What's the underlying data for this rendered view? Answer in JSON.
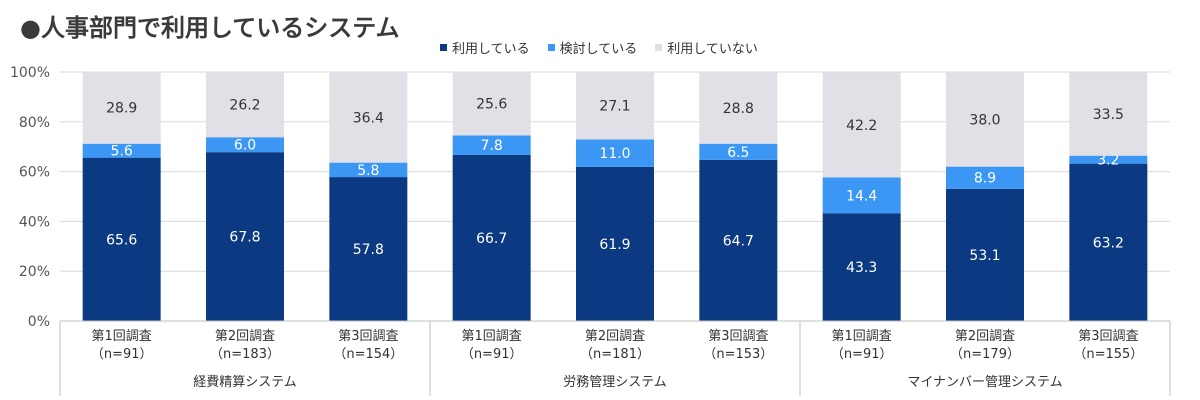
{
  "title": "●人事部門で利用しているシステム",
  "legend": [
    {
      "label": "利用している",
      "color": "#0b3a82"
    },
    {
      "label": "検討している",
      "color": "#3b97f3"
    },
    {
      "label": "利用していない",
      "color": "#e1e0e6"
    }
  ],
  "chart_data": {
    "type": "bar",
    "stacked": true,
    "ylim": [
      0,
      100
    ],
    "yticks": [
      "0%",
      "20%",
      "40%",
      "60%",
      "80%",
      "100%"
    ],
    "grid": true,
    "legend_position": "top",
    "groups": [
      {
        "label": "経費精算システム",
        "categories": [
          {
            "line1": "第1回調査",
            "line2": "（n=91）"
          },
          {
            "line1": "第2回調査",
            "line2": "（n=183）"
          },
          {
            "line1": "第3回調査",
            "line2": "（n=154）"
          }
        ]
      },
      {
        "label": "労務管理システム",
        "categories": [
          {
            "line1": "第1回調査",
            "line2": "（n=91）"
          },
          {
            "line1": "第2回調査",
            "line2": "（n=181）"
          },
          {
            "line1": "第3回調査",
            "line2": "（n=153）"
          }
        ]
      },
      {
        "label": "マイナンバー管理システム",
        "categories": [
          {
            "line1": "第1回調査",
            "line2": "（n=91）"
          },
          {
            "line1": "第2回調査",
            "line2": "（n=179）"
          },
          {
            "line1": "第3回調査",
            "line2": "（n=155）"
          }
        ]
      }
    ],
    "series": [
      {
        "name": "利用している",
        "color": "#0b3a82",
        "label_color": "#ffffff",
        "values": [
          65.6,
          67.8,
          57.8,
          66.7,
          61.9,
          64.7,
          43.3,
          53.1,
          63.2
        ]
      },
      {
        "name": "検討している",
        "color": "#3b97f3",
        "label_color": "#ffffff",
        "values": [
          5.6,
          6.0,
          5.8,
          7.8,
          11.0,
          6.5,
          14.4,
          8.9,
          3.2
        ]
      },
      {
        "name": "利用していない",
        "color": "#e1e0e6",
        "label_color": "#333333",
        "values": [
          28.9,
          26.2,
          36.4,
          25.6,
          27.1,
          28.8,
          42.2,
          38.0,
          33.5
        ]
      }
    ]
  }
}
